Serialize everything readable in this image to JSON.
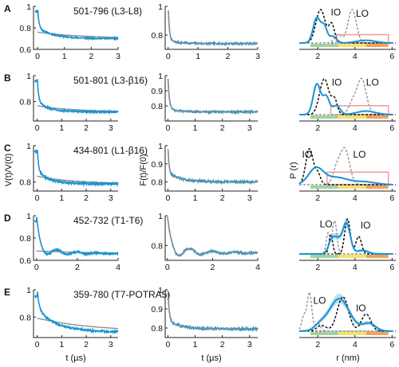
{
  "panel_letters": [
    "A",
    "B",
    "C",
    "D",
    "E"
  ],
  "colors": {
    "data_blue": "#1a93d1",
    "fit_gray": "#8a8a8a",
    "io_black": "#111111",
    "lo_gray": "#9a9a9a",
    "box_pink": "#f29a9a",
    "band_green": "#9fd49f",
    "band_yellow": "#f4e36a",
    "band_orange": "#f2a25a",
    "ci_lightblue": "#9fd3ee"
  },
  "axis_labels": {
    "col1_y": "V(t)/V(0)",
    "col2_y": "F(t)/F(0)",
    "col3_y": "P (r)",
    "col1_x": "t (µs)",
    "col2_x": "t (µs)",
    "col3_x": "r (nm)"
  },
  "curve_labels": {
    "io": "IO",
    "lo": "LO"
  },
  "chart_data": [
    {
      "panel": "A",
      "construct": "501-796 (L3-L8)",
      "col1": {
        "type": "line",
        "xlim": [
          -0.15,
          3
        ],
        "ylim": [
          0.6,
          1.0
        ],
        "xticks": [
          0,
          1,
          2,
          3
        ],
        "yticks": [
          0.6,
          0.8,
          1
        ],
        "ytick_labels": [
          "0.6",
          "0.8",
          "1"
        ],
        "plateau": 0.7,
        "peak": 1.0,
        "fast_tau": 0.05,
        "slow_tau": 0.6,
        "slow_amp": 0.1,
        "osc_amp": 0,
        "osc_period": 1
      },
      "col2": {
        "type": "line",
        "xlim": [
          -0.1,
          3
        ],
        "ylim": [
          0.7,
          1.0
        ],
        "yticks": [
          0.8,
          1
        ],
        "ytick_labels": [
          "0.8",
          "1"
        ],
        "plateau": 0.74,
        "peak": 1.0,
        "fast_tau": 0.04,
        "slow_tau": 0.4,
        "slow_amp": 0.02,
        "osc_amp": 0,
        "osc_period": 1
      },
      "col3": {
        "type": "line",
        "xlim": [
          1,
          6.2
        ],
        "xticks": [
          2,
          4,
          6
        ],
        "io": {
          "peaks": [
            [
              2.15,
              0.25,
              1.0
            ],
            [
              2.75,
              0.15,
              0.55
            ]
          ]
        },
        "lo": {
          "peaks": [
            [
              3.85,
              0.22,
              1.0
            ],
            [
              3.1,
              0.2,
              0.25
            ]
          ]
        },
        "exp": {
          "peaks": [
            [
              1.95,
              0.2,
              0.75
            ],
            [
              2.35,
              0.15,
              0.45
            ],
            [
              2.8,
              0.2,
              0.2
            ],
            [
              4.6,
              0.5,
              0.08
            ]
          ]
        },
        "box": [
          3.0,
          5.8,
          0.25
        ],
        "ci": false,
        "io_pos": [
          2.7,
          0.92
        ],
        "lo_pos": [
          4.05,
          0.88
        ]
      }
    },
    {
      "panel": "B",
      "construct": "501-801 (L3-β16)",
      "col1": {
        "type": "line",
        "xlim": [
          -0.15,
          3.3
        ],
        "ylim": [
          0.65,
          1.0
        ],
        "xticks": [
          0,
          1,
          2,
          3
        ],
        "yticks": [
          0.8,
          1
        ],
        "ytick_labels": [
          "0.8",
          "1"
        ],
        "plateau": 0.72,
        "peak": 1.0,
        "fast_tau": 0.05,
        "slow_tau": 0.5,
        "slow_amp": 0.08,
        "osc_amp": 0,
        "osc_period": 1
      },
      "col2": {
        "type": "line",
        "xlim": [
          -0.1,
          3.3
        ],
        "ylim": [
          0.7,
          1.0
        ],
        "yticks": [
          0.8,
          0.9,
          1
        ],
        "ytick_labels": [
          "0.8",
          "0.9",
          "1"
        ],
        "plateau": 0.76,
        "peak": 1.0,
        "fast_tau": 0.05,
        "slow_tau": 0.4,
        "slow_amp": 0.02,
        "osc_amp": 0,
        "osc_period": 1
      },
      "col3": {
        "type": "line",
        "xlim": [
          1,
          6.2
        ],
        "xticks": [
          2,
          4,
          6
        ],
        "io": {
          "peaks": [
            [
              2.35,
              0.25,
              1.0
            ],
            [
              2.9,
              0.15,
              0.4
            ]
          ]
        },
        "lo": {
          "peaks": [
            [
              4.35,
              0.25,
              1.0
            ],
            [
              3.85,
              0.2,
              0.3
            ]
          ]
        },
        "exp": {
          "peaks": [
            [
              1.95,
              0.2,
              0.85
            ],
            [
              2.45,
              0.18,
              0.5
            ],
            [
              3.0,
              0.2,
              0.25
            ],
            [
              4.6,
              0.5,
              0.1
            ]
          ]
        },
        "box": [
          2.7,
          5.8,
          0.25
        ],
        "ci": false,
        "io_pos": [
          2.75,
          0.9
        ],
        "lo_pos": [
          4.6,
          0.9
        ]
      }
    },
    {
      "panel": "C",
      "construct": "434-801 (L1-β16)",
      "col1": {
        "type": "line",
        "xlim": [
          -0.15,
          3.3
        ],
        "ylim": [
          0.75,
          1.0
        ],
        "xticks": [
          0,
          1,
          2,
          3
        ],
        "yticks": [
          0.8,
          1
        ],
        "ytick_labels": [
          "0.8",
          "1"
        ],
        "plateau": 0.79,
        "peak": 1.0,
        "fast_tau": 0.05,
        "slow_tau": 0.5,
        "slow_amp": 0.07,
        "osc_amp": 0,
        "osc_period": 1
      },
      "col2": {
        "type": "line",
        "xlim": [
          -0.1,
          3.3
        ],
        "ylim": [
          0.75,
          1.0
        ],
        "yticks": [
          0.8,
          0.9,
          1
        ],
        "ytick_labels": [
          "0.8",
          "0.9",
          "1"
        ],
        "plateau": 0.8,
        "peak": 1.0,
        "fast_tau": 0.04,
        "slow_tau": 0.5,
        "slow_amp": 0.05,
        "osc_amp": 0,
        "osc_period": 1
      },
      "col3": {
        "type": "line",
        "xlim": [
          1,
          6.2
        ],
        "xticks": [
          2,
          4,
          6
        ],
        "io": {
          "peaks": [
            [
              1.55,
              0.2,
              1.0
            ],
            [
              2.0,
              0.15,
              0.3
            ]
          ]
        },
        "lo": {
          "peaks": [
            [
              3.45,
              0.25,
              1.0
            ],
            [
              3.0,
              0.2,
              0.4
            ]
          ]
        },
        "exp": {
          "peaks": [
            [
              1.9,
              0.4,
              0.45
            ],
            [
              3.0,
              0.6,
              0.2
            ],
            [
              4.5,
              0.6,
              0.08
            ]
          ]
        },
        "box": [
          2.5,
          5.8,
          0.35
        ],
        "ci": false,
        "io_pos": [
          1.15,
          0.85
        ],
        "lo_pos": [
          3.9,
          0.85
        ]
      }
    },
    {
      "panel": "D",
      "construct": "452-732 (T1-T6)",
      "col1": {
        "type": "line",
        "xlim": [
          -0.15,
          4
        ],
        "ylim": [
          0.6,
          1.0
        ],
        "xticks": [
          0,
          2,
          4
        ],
        "yticks": [
          0.6,
          0.8,
          1
        ],
        "ytick_labels": [
          "0.6",
          "0.8",
          "1"
        ],
        "plateau": 0.66,
        "peak": 1.0,
        "fast_tau": 0.12,
        "slow_tau": 1.0,
        "slow_amp": 0.04,
        "osc_amp": 0.05,
        "osc_period": 1.0
      },
      "col2": {
        "type": "line",
        "xlim": [
          -0.1,
          4
        ],
        "ylim": [
          0.7,
          1.0
        ],
        "xticks": [
          0,
          2,
          4
        ],
        "yticks": [
          0.8,
          1
        ],
        "ytick_labels": [
          "0.8",
          "1"
        ],
        "plateau": 0.75,
        "peak": 1.0,
        "fast_tau": 0.12,
        "slow_tau": 1.0,
        "slow_amp": 0.02,
        "osc_amp": 0.05,
        "osc_period": 1.0
      },
      "col3": {
        "type": "line",
        "xlim": [
          1,
          6.2
        ],
        "xticks": [
          2,
          4,
          6
        ],
        "io": {
          "peaks": [
            [
              3.6,
              0.15,
              1.0
            ],
            [
              2.7,
              0.1,
              0.55
            ],
            [
              4.2,
              0.15,
              0.5
            ]
          ]
        },
        "lo": {
          "peaks": [
            [
              2.55,
              0.1,
              0.6
            ],
            [
              2.9,
              0.12,
              0.95
            ]
          ]
        },
        "exp": {
          "peaks": [
            [
              3.55,
              0.2,
              0.85
            ],
            [
              3.0,
              0.25,
              0.45
            ],
            [
              2.7,
              0.15,
              0.2
            ],
            [
              4.4,
              0.3,
              0.1
            ]
          ]
        },
        "box": null,
        "ci": true,
        "io_pos": [
          4.3,
          0.82
        ],
        "lo_pos": [
          2.1,
          0.85
        ]
      }
    },
    {
      "panel": "E",
      "construct": "359-780 (T7-POTRA5)",
      "col1": {
        "type": "line",
        "xlim": [
          -0.15,
          3.3
        ],
        "ylim": [
          0.65,
          1.0
        ],
        "xticks": [
          0,
          1,
          2,
          3
        ],
        "yticks": [
          0.8,
          1
        ],
        "ytick_labels": [
          "0.8",
          "1"
        ],
        "plateau": 0.69,
        "peak": 1.0,
        "fast_tau": 0.08,
        "slow_tau": 0.8,
        "slow_amp": 0.17,
        "osc_amp": 0,
        "osc_period": 1
      },
      "col2": {
        "type": "line",
        "xlim": [
          -0.1,
          3.3
        ],
        "ylim": [
          0.75,
          1.0
        ],
        "yticks": [
          0.8,
          0.9,
          1
        ],
        "ytick_labels": [
          "0.8",
          "0.9",
          "1"
        ],
        "plateau": 0.795,
        "peak": 1.0,
        "fast_tau": 0.05,
        "slow_tau": 0.5,
        "slow_amp": 0.04,
        "osc_amp": 0,
        "osc_period": 1
      },
      "col3": {
        "type": "line",
        "xlim": [
          1,
          6.2
        ],
        "xticks": [
          2,
          4,
          6
        ],
        "io": {
          "peaks": [
            [
              3.35,
              0.3,
              0.9
            ],
            [
              4.6,
              0.25,
              0.45
            ],
            [
              2.2,
              0.25,
              0.15
            ]
          ]
        },
        "lo": {
          "peaks": [
            [
              1.55,
              0.12,
              1.0
            ],
            [
              1.25,
              0.12,
              0.4
            ],
            [
              2.0,
              0.15,
              0.2
            ]
          ]
        },
        "exp": {
          "peaks": [
            [
              3.15,
              0.55,
              0.85
            ],
            [
              4.75,
              0.35,
              0.2
            ],
            [
              2.1,
              0.3,
              0.12
            ]
          ]
        },
        "box": null,
        "ci": true,
        "io_pos": [
          4.05,
          0.6
        ],
        "lo_pos": [
          1.75,
          0.8
        ]
      }
    }
  ]
}
